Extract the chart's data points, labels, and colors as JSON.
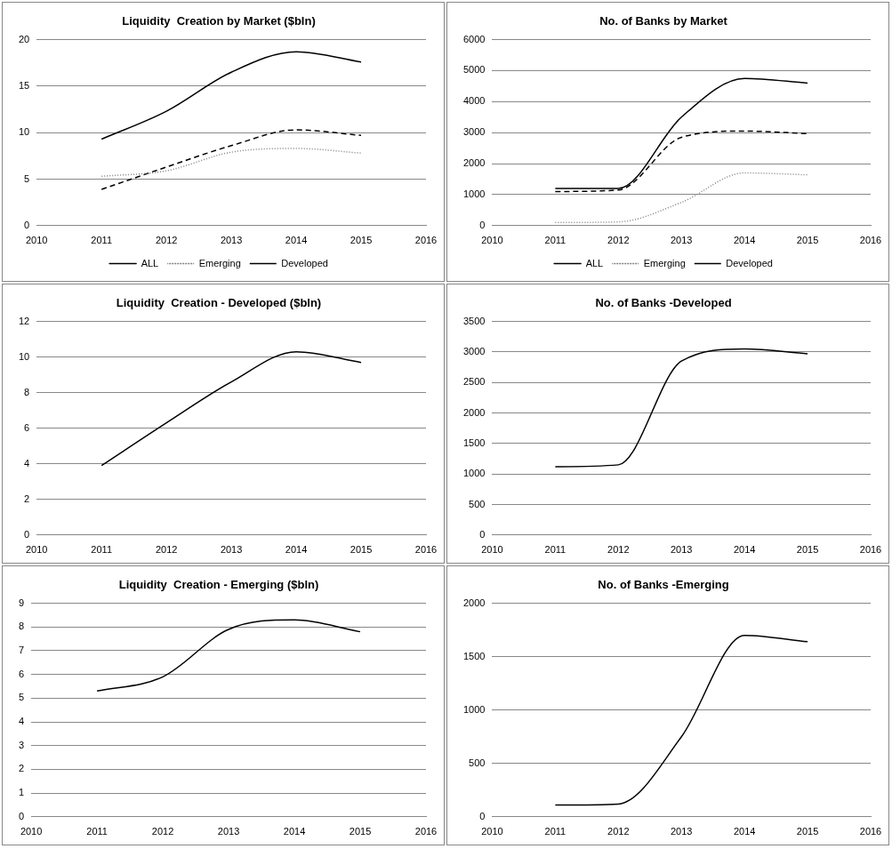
{
  "chart_data": [
    {
      "type": "line",
      "title": "Liquidity  Creation by Market ($bln)",
      "x": [
        2011,
        2012,
        2013,
        2014,
        2015
      ],
      "xlim": [
        2010,
        2016
      ],
      "xticks": [
        2010,
        2011,
        2012,
        2013,
        2014,
        2015,
        2016
      ],
      "ylim": [
        0,
        20
      ],
      "yticks": [
        0,
        5,
        10,
        15,
        20
      ],
      "grid": "y",
      "legend": "bottom",
      "marker": "none",
      "series": [
        {
          "name": "ALL",
          "color": "#000000",
          "line_style": "solid",
          "values": [
            9.3,
            12.3,
            16.5,
            18.7,
            17.6
          ]
        },
        {
          "name": "Emerging",
          "color": "#808080",
          "line_style": "dotted",
          "values": [
            5.3,
            5.9,
            7.9,
            8.3,
            7.8
          ]
        },
        {
          "name": "Developed",
          "color": "#000000",
          "line_style": "dashed",
          "values": [
            3.9,
            6.3,
            8.6,
            10.3,
            9.7
          ]
        }
      ]
    },
    {
      "type": "line",
      "title": "No. of Banks by Market",
      "x": [
        2011,
        2012,
        2013,
        2014,
        2015
      ],
      "xlim": [
        2010,
        2016
      ],
      "xticks": [
        2010,
        2011,
        2012,
        2013,
        2014,
        2015,
        2016
      ],
      "ylim": [
        0,
        6000
      ],
      "yticks": [
        0,
        1000,
        2000,
        3000,
        4000,
        5000,
        6000
      ],
      "grid": "y",
      "legend": "bottom",
      "marker": "none",
      "series": [
        {
          "name": "ALL",
          "color": "#000000",
          "line_style": "solid",
          "values": [
            1200,
            1200,
            3500,
            4750,
            4600
          ]
        },
        {
          "name": "Emerging",
          "color": "#808080",
          "line_style": "dotted",
          "values": [
            100,
            120,
            750,
            1700,
            1640
          ]
        },
        {
          "name": "Developed",
          "color": "#000000",
          "line_style": "dashed",
          "values": [
            1100,
            1150,
            2850,
            3050,
            2970
          ]
        }
      ]
    },
    {
      "type": "line",
      "title": "Liquidity  Creation - Developed ($bln)",
      "x": [
        2011,
        2012,
        2013,
        2014,
        2015
      ],
      "xlim": [
        2010,
        2016
      ],
      "xticks": [
        2010,
        2011,
        2012,
        2013,
        2014,
        2015,
        2016
      ],
      "ylim": [
        0,
        12
      ],
      "yticks": [
        0,
        2,
        4,
        6,
        8,
        10,
        12
      ],
      "grid": "y",
      "marker": "none",
      "series": [
        {
          "color": "#000000",
          "line_style": "solid",
          "values": [
            3.9,
            6.3,
            8.6,
            10.3,
            9.7
          ]
        }
      ]
    },
    {
      "type": "line",
      "title": "No. of Banks -Developed",
      "x": [
        2011,
        2012,
        2013,
        2014,
        2015
      ],
      "xlim": [
        2010,
        2016
      ],
      "xticks": [
        2010,
        2011,
        2012,
        2013,
        2014,
        2015,
        2016
      ],
      "ylim": [
        0,
        3500
      ],
      "yticks": [
        0,
        500,
        1000,
        1500,
        2000,
        2500,
        3000,
        3500
      ],
      "grid": "y",
      "marker": "none",
      "series": [
        {
          "color": "#000000",
          "line_style": "solid",
          "values": [
            1120,
            1150,
            2850,
            3050,
            2970
          ]
        }
      ]
    },
    {
      "type": "line",
      "title": "Liquidity  Creation - Emerging ($bln)",
      "x": [
        2011,
        2012,
        2013,
        2014,
        2015
      ],
      "xlim": [
        2010,
        2016
      ],
      "xticks": [
        2010,
        2011,
        2012,
        2013,
        2014,
        2015,
        2016
      ],
      "ylim": [
        0,
        9
      ],
      "yticks": [
        0,
        1,
        2,
        3,
        4,
        5,
        6,
        7,
        8,
        9
      ],
      "grid": "y",
      "marker": "none",
      "series": [
        {
          "color": "#000000",
          "line_style": "solid",
          "values": [
            5.3,
            5.9,
            7.9,
            8.3,
            7.8
          ]
        }
      ]
    },
    {
      "type": "line",
      "title": "No. of Banks -Emerging",
      "x": [
        2011,
        2012,
        2013,
        2014,
        2015
      ],
      "xlim": [
        2010,
        2016
      ],
      "xticks": [
        2010,
        2011,
        2012,
        2013,
        2014,
        2015,
        2016
      ],
      "ylim": [
        0,
        2000
      ],
      "yticks": [
        0,
        500,
        1000,
        1500,
        2000
      ],
      "grid": "y",
      "marker": "none",
      "series": [
        {
          "color": "#000000",
          "line_style": "solid",
          "values": [
            110,
            120,
            750,
            1700,
            1640
          ]
        }
      ]
    }
  ]
}
